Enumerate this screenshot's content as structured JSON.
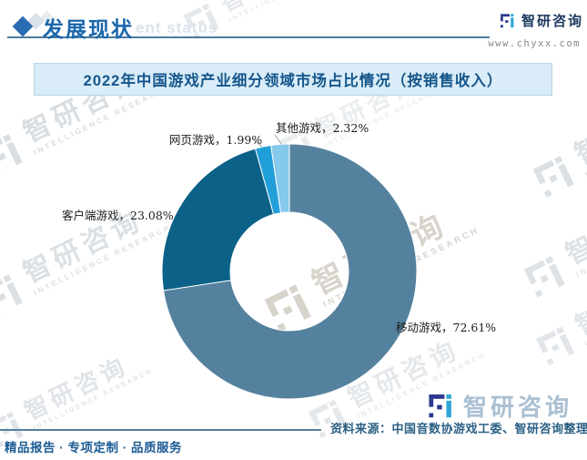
{
  "header": {
    "title": "发展现状",
    "title_watermark": "ent status",
    "brand": {
      "name": "智研咨询",
      "url": "www.chyxx.com"
    }
  },
  "brand_colors": {
    "navy": "#2b3990",
    "cyan": "#2da7d8"
  },
  "chart_data": {
    "type": "pie",
    "subtype": "donut",
    "title": "2022年中国游戏产业细分领域市场占比情况（按销售收入）",
    "categories": [
      "移动游戏",
      "客户端游戏",
      "网页游戏",
      "其他游戏"
    ],
    "values": [
      72.61,
      23.08,
      1.99,
      2.32
    ],
    "unit": "%",
    "colors": [
      "#54819e",
      "#0b6187",
      "#219fd9",
      "#85c9ec"
    ],
    "start_angle_deg": 0,
    "direction": "clockwise",
    "inner_radius_ratio": 0.465,
    "label_format": "{category}，{value}%",
    "legend": "none",
    "background": "#ffffff"
  },
  "watermark": {
    "text": "智研咨询",
    "caption": "INTELLIGENCE RESEARCH"
  },
  "footer": {
    "source": "资料来源：中国音数协游戏工委、智研咨询整理",
    "brand_watermark": "智研咨询",
    "tagline": "精品报告 · 专项定制 · 品质服务"
  }
}
